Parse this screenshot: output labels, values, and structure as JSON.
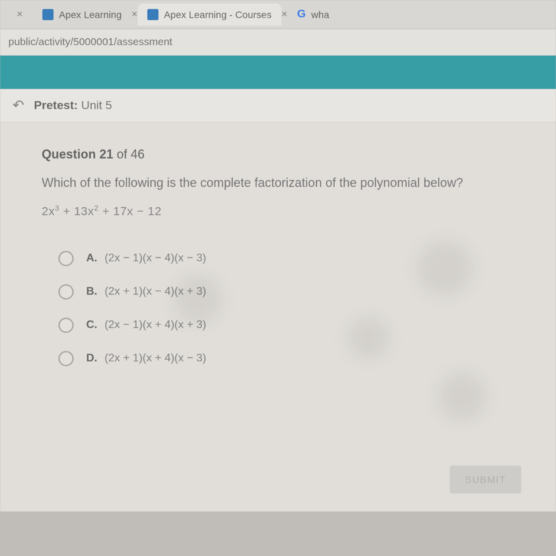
{
  "tabs": [
    {
      "label": "",
      "close": "×"
    },
    {
      "label": "Apex Learning",
      "close": "×"
    },
    {
      "label": "Apex Learning - Courses",
      "close": "×"
    },
    {
      "label": "wha"
    }
  ],
  "url": "public/activity/5000001/assessment",
  "breadcrumb": {
    "strong": "Pretest:",
    "rest": " Unit 5"
  },
  "question": {
    "counter_strong": "Question 21",
    "counter_rest": " of 46",
    "text": "Which of the following is the complete factorization of the polynomial below?",
    "formula_html": "2x<span class='sup'>3</span> + 13x<span class='sup'>2</span> + 17x − 12"
  },
  "options": [
    {
      "letter": "A.",
      "expr": "(2x − 1)(x − 4)(x − 3)"
    },
    {
      "letter": "B.",
      "expr": "(2x + 1)(x − 4)(x + 3)"
    },
    {
      "letter": "C.",
      "expr": "(2x − 1)(x + 4)(x + 3)"
    },
    {
      "letter": "D.",
      "expr": "(2x + 1)(x + 4)(x − 3)"
    }
  ],
  "submit_label": "SUBMIT"
}
